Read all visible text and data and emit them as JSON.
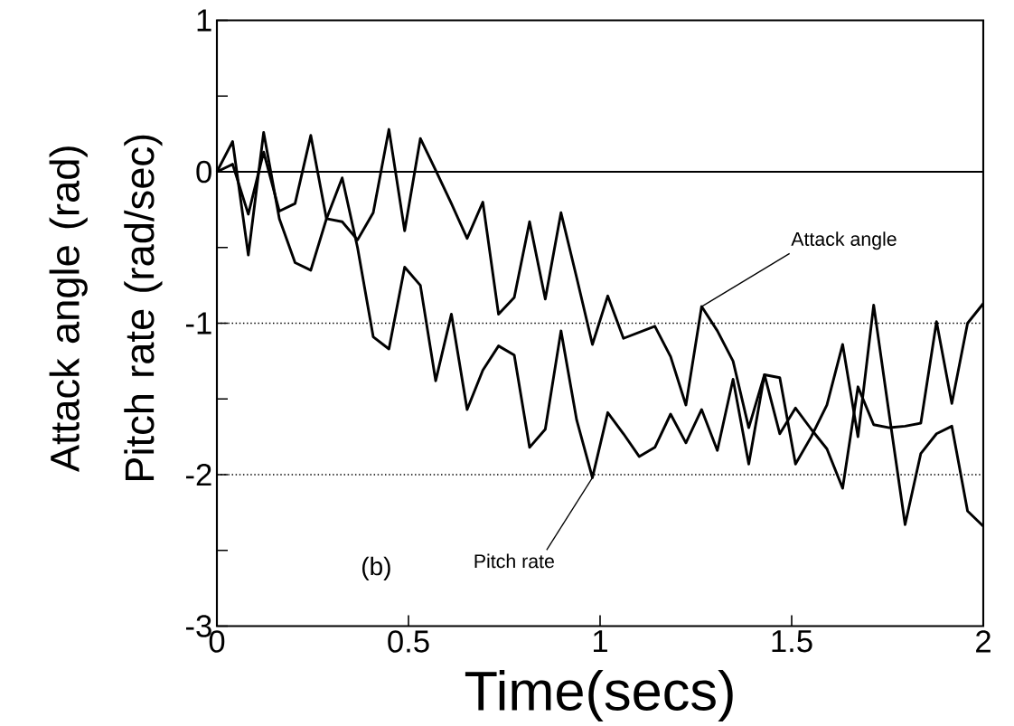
{
  "chart_data": {
    "type": "line",
    "xlabel": "Time(secs)",
    "ylabel": "Attack angle (rad) Pitch rate (rad/sec)",
    "xlim": [
      0,
      2
    ],
    "ylim": [
      -3,
      1
    ],
    "xticks": [
      0,
      0.5,
      1,
      1.5,
      2
    ],
    "yticks": [
      -3,
      {
        "value": -2.5,
        "label": null
      },
      -2,
      {
        "value": -1.5,
        "label": null
      },
      -1,
      {
        "value": -0.5,
        "label": null
      },
      0,
      {
        "value": 0.5,
        "label": null
      },
      1
    ],
    "x": [
      0,
      0.041,
      0.082,
      0.122,
      0.163,
      0.204,
      0.245,
      0.286,
      0.327,
      0.367,
      0.408,
      0.449,
      0.49,
      0.531,
      0.571,
      0.612,
      0.653,
      0.694,
      0.735,
      0.776,
      0.816,
      0.857,
      0.898,
      0.939,
      0.98,
      1.02,
      1.061,
      1.102,
      1.143,
      1.184,
      1.224,
      1.265,
      1.306,
      1.347,
      1.388,
      1.429,
      1.469,
      1.51,
      1.551,
      1.592,
      1.633,
      1.673,
      1.714,
      1.755,
      1.796,
      1.837,
      1.878,
      1.918,
      1.959,
      2.0
    ],
    "series": [
      {
        "color": "#000000",
        "values": [
          0,
          0.05,
          -0.28,
          0.13,
          -0.26,
          -0.21,
          0.24,
          -0.31,
          -0.33,
          -0.45,
          -0.27,
          0.28,
          -0.39,
          0.22,
          0.01,
          -0.21,
          -0.44,
          -0.2,
          -0.94,
          -0.83,
          -0.33,
          -0.84,
          -0.27,
          -0.7,
          -1.14,
          -0.82,
          -1.1,
          -1.06,
          -1.02,
          -1.22,
          -1.54,
          -0.89,
          -1.05,
          -1.25,
          -1.69,
          -1.34,
          -1.36,
          -1.93,
          -1.75,
          -1.54,
          -1.14,
          -1.75,
          -0.88,
          -1.61,
          -2.33,
          -1.86,
          -1.73,
          -1.68,
          -2.24,
          -2.34
        ]
      },
      {
        "color": "#000000",
        "values": [
          0,
          0.2,
          -0.55,
          0.26,
          -0.31,
          -0.6,
          -0.65,
          -0.31,
          -0.04,
          -0.5,
          -1.09,
          -1.17,
          -0.63,
          -0.75,
          -1.38,
          -0.94,
          -1.57,
          -1.31,
          -1.15,
          -1.21,
          -1.82,
          -1.7,
          -1.05,
          -1.64,
          -2.02,
          -1.59,
          -1.73,
          -1.88,
          -1.82,
          -1.6,
          -1.79,
          -1.57,
          -1.84,
          -1.37,
          -1.93,
          -1.34,
          -1.73,
          -1.56,
          -1.7,
          -1.83,
          -2.09,
          -1.42,
          -1.67,
          -1.69,
          -1.68,
          -1.66,
          -0.99,
          -1.53,
          -1.0,
          -0.87
        ]
      }
    ],
    "ref_lines": [
      {
        "axis": "y",
        "value": 0,
        "line_style": "solid",
        "color": "#000000"
      },
      {
        "axis": "y",
        "value": -1,
        "line_style": "dotted",
        "color": "#000000"
      },
      {
        "axis": "y",
        "value": -2,
        "line_style": "dotted",
        "color": "#000000"
      }
    ],
    "annotations": [
      {
        "text": "Attack angle",
        "x": 1.265,
        "y": -0.89
      },
      {
        "text": "Pitch rate",
        "x": 0.98,
        "y": -2.02
      },
      "(b)"
    ],
    "line_style": "solid",
    "marker": "none"
  }
}
